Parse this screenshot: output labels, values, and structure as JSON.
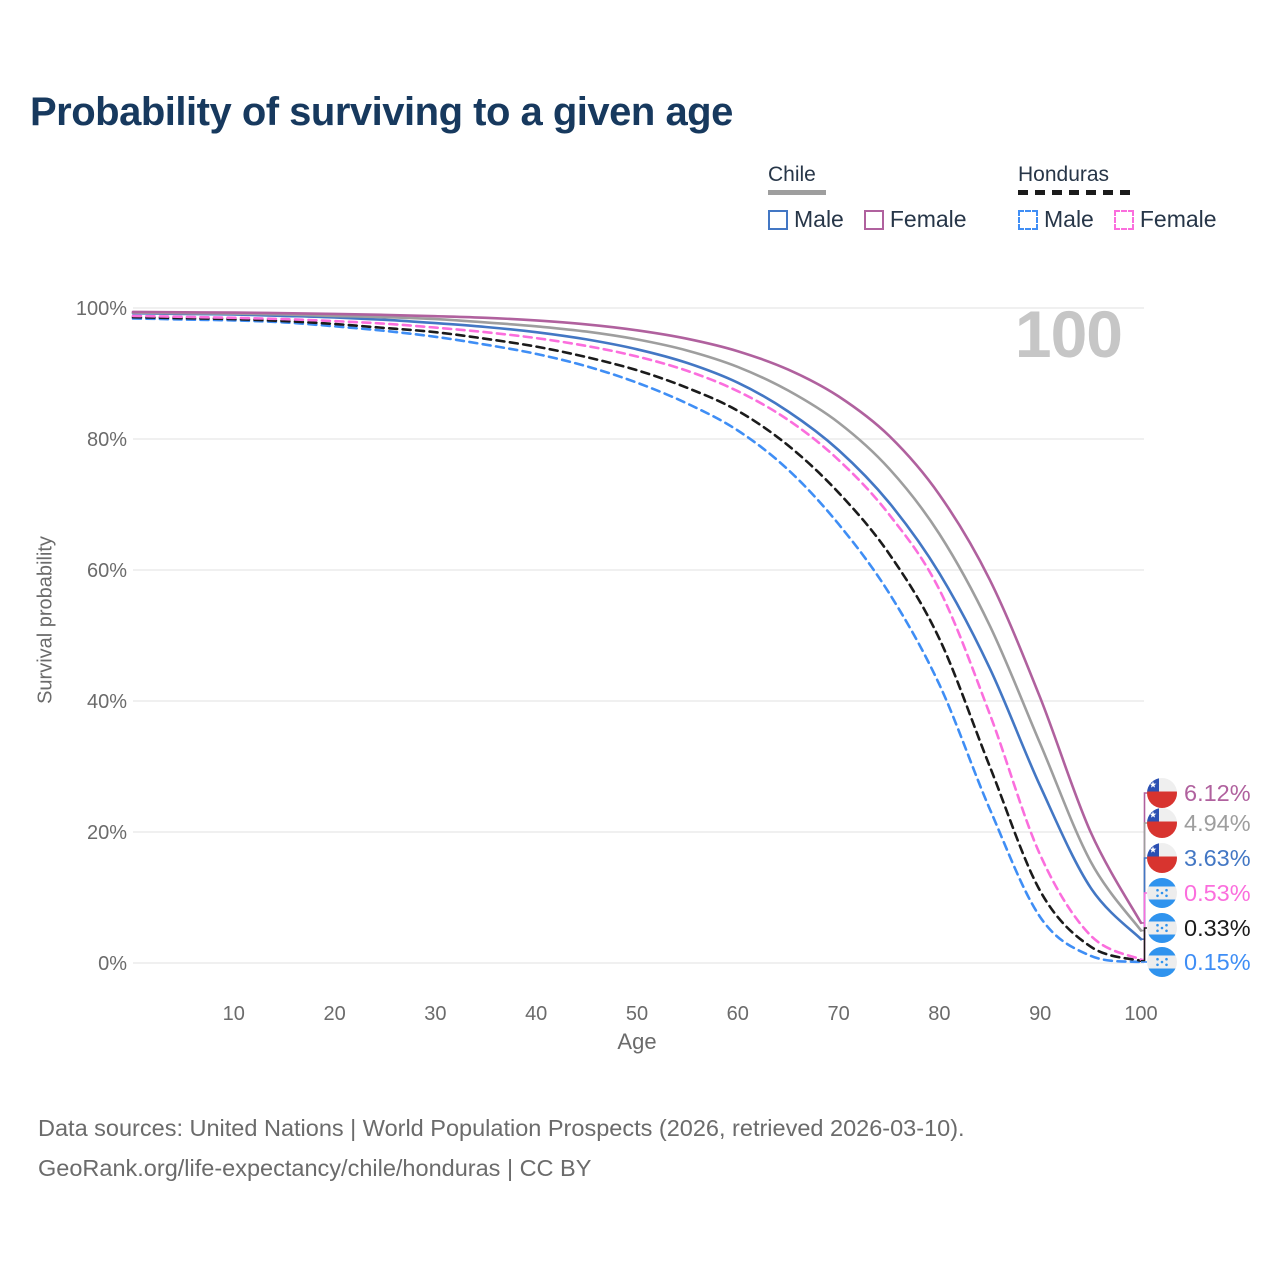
{
  "title": "Probability of surviving to a given age",
  "legend": {
    "groups": [
      {
        "country": "Chile",
        "line_style": "solid",
        "items": [
          {
            "label": "Male"
          },
          {
            "label": "Female"
          }
        ]
      },
      {
        "country": "Honduras",
        "line_style": "dashed",
        "items": [
          {
            "label": "Male"
          },
          {
            "label": "Female"
          }
        ]
      }
    ]
  },
  "footer": {
    "line1": "Data sources: United Nations | World Population Prospects (2026, retrieved 2026-03-10).",
    "line2": "GeoRank.org/life-expectancy/chile/honduras | CC BY"
  },
  "chart_data": {
    "type": "line",
    "title": "Probability of surviving to a given age",
    "xlabel": "Age",
    "ylabel": "Survival probability",
    "watermark": "100",
    "xlim": [
      0,
      100
    ],
    "ylim": [
      0,
      100
    ],
    "grid": "horizontal",
    "legend_position": "top-right",
    "xticks": [
      10,
      20,
      30,
      40,
      50,
      60,
      70,
      80,
      90,
      100
    ],
    "yticks": [
      {
        "value": 0,
        "label": "0%"
      },
      {
        "value": 20,
        "label": "20%"
      },
      {
        "value": 40,
        "label": "40%"
      },
      {
        "value": 60,
        "label": "60%"
      },
      {
        "value": 80,
        "label": "80%"
      },
      {
        "value": 100,
        "label": "100%"
      }
    ],
    "ages": [
      0,
      5,
      10,
      15,
      20,
      25,
      30,
      35,
      40,
      45,
      50,
      55,
      60,
      65,
      70,
      75,
      80,
      85,
      90,
      95,
      100
    ],
    "series": [
      {
        "id": "chile_female",
        "country": "Chile",
        "sex": "Female",
        "flag": "chile",
        "color": "#b0619e",
        "dash": "solid",
        "end_label": "6.12%",
        "end_value": 6.12,
        "values": [
          99.4,
          99.35,
          99.3,
          99.2,
          99.1,
          98.95,
          98.75,
          98.5,
          98.1,
          97.5,
          96.6,
          95.3,
          93.4,
          90.6,
          86.5,
          80.5,
          71.5,
          58.5,
          40.5,
          20.0,
          6.12
        ]
      },
      {
        "id": "chile_both",
        "country": "Chile",
        "sex": "Both sexes",
        "flag": "chile",
        "color": "#9e9e9e",
        "dash": "solid",
        "end_label": "4.94%",
        "end_value": 4.94,
        "values": [
          99.3,
          99.2,
          99.15,
          99.0,
          98.8,
          98.6,
          98.3,
          97.8,
          97.2,
          96.4,
          95.2,
          93.5,
          91.0,
          87.4,
          82.5,
          75.5,
          65.5,
          51.5,
          33.5,
          15.5,
          4.94
        ]
      },
      {
        "id": "chile_male",
        "country": "Chile",
        "sex": "Male",
        "flag": "chile",
        "color": "#4377c4",
        "dash": "solid",
        "end_label": "3.63%",
        "end_value": 3.63,
        "values": [
          99.2,
          99.1,
          99.0,
          98.8,
          98.55,
          98.2,
          97.7,
          97.1,
          96.3,
          95.2,
          93.7,
          91.6,
          88.6,
          84.2,
          78.3,
          70.3,
          59.5,
          45.0,
          27.0,
          11.5,
          3.63
        ]
      },
      {
        "id": "honduras_female",
        "country": "Honduras",
        "sex": "Female",
        "flag": "honduras",
        "color": "#fb6edd",
        "dash": "dashed",
        "end_label": "0.53%",
        "end_value": 0.53,
        "values": [
          98.8,
          98.65,
          98.5,
          98.3,
          98.0,
          97.6,
          97.0,
          96.3,
          95.4,
          94.2,
          92.6,
          90.4,
          87.3,
          82.9,
          76.8,
          68.5,
          57.0,
          38.0,
          16.5,
          4.2,
          0.53
        ]
      },
      {
        "id": "honduras_both",
        "country": "Honduras",
        "sex": "Both sexes",
        "flag": "honduras",
        "color": "#1b1b1b",
        "dash": "dashed",
        "end_label": "0.33%",
        "end_value": 0.33,
        "values": [
          98.6,
          98.45,
          98.3,
          98.0,
          97.55,
          96.95,
          96.3,
          95.3,
          94.1,
          92.5,
          90.5,
          87.8,
          84.3,
          79.0,
          71.8,
          62.5,
          49.5,
          30.0,
          11.0,
          2.5,
          0.33
        ]
      },
      {
        "id": "honduras_male",
        "country": "Honduras",
        "sex": "Male",
        "flag": "honduras",
        "color": "#3f8ef5",
        "dash": "dashed",
        "end_label": "0.15%",
        "end_value": 0.15,
        "values": [
          98.4,
          98.25,
          98.1,
          97.8,
          97.2,
          96.5,
          95.6,
          94.4,
          93.0,
          91.1,
          88.6,
          85.4,
          81.3,
          75.3,
          67.0,
          56.5,
          42.5,
          23.5,
          7.0,
          1.1,
          0.15
        ]
      }
    ]
  }
}
